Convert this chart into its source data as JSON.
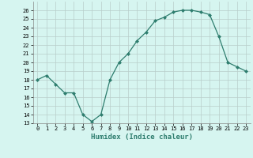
{
  "x": [
    0,
    1,
    2,
    3,
    4,
    5,
    6,
    7,
    8,
    9,
    10,
    11,
    12,
    13,
    14,
    15,
    16,
    17,
    18,
    19,
    20,
    21,
    22,
    23
  ],
  "y": [
    18,
    18.5,
    17.5,
    16.5,
    16.5,
    14,
    13.2,
    14,
    18,
    20,
    21,
    22.5,
    23.5,
    24.8,
    25.2,
    25.8,
    26,
    26,
    25.8,
    25.5,
    23,
    20,
    19.5,
    19
  ],
  "xlabel": "Humidex (Indice chaleur)",
  "xlim": [
    -0.5,
    23.5
  ],
  "ylim": [
    13,
    27
  ],
  "yticks": [
    13,
    14,
    15,
    16,
    17,
    18,
    19,
    20,
    21,
    22,
    23,
    24,
    25,
    26
  ],
  "xticks": [
    0,
    1,
    2,
    3,
    4,
    5,
    6,
    7,
    8,
    9,
    10,
    11,
    12,
    13,
    14,
    15,
    16,
    17,
    18,
    19,
    20,
    21,
    22,
    23
  ],
  "line_color": "#2e7d6e",
  "marker": "D",
  "marker_size": 2,
  "bg_color": "#d6f5f0",
  "grid_color": "#b8ceca",
  "label_fontsize": 6.5,
  "tick_fontsize": 5
}
